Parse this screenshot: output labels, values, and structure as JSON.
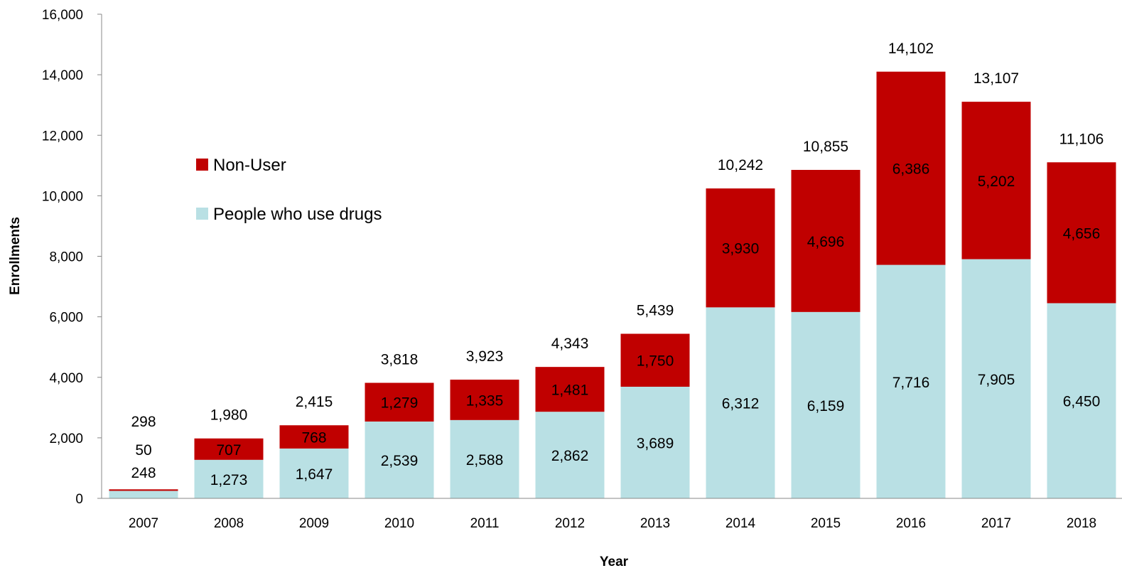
{
  "chart_data": {
    "type": "bar",
    "stacked": true,
    "title": "",
    "xlabel": "Year",
    "ylabel": "Enrollments",
    "ylim": [
      0,
      16000
    ],
    "yticks": [
      0,
      2000,
      4000,
      6000,
      8000,
      10000,
      12000,
      14000,
      16000
    ],
    "ytick_labels": [
      "0",
      "2,000",
      "4,000",
      "6,000",
      "8,000",
      "10,000",
      "12,000",
      "14,000",
      "16,000"
    ],
    "grid": false,
    "legend_position": "upper-left",
    "categories": [
      "2007",
      "2008",
      "2009",
      "2010",
      "2011",
      "2012",
      "2013",
      "2014",
      "2015",
      "2016",
      "2017",
      "2018"
    ],
    "series": [
      {
        "name": "People who use drugs",
        "color": "#b9e0e4",
        "values": [
          248,
          1273,
          1647,
          2539,
          2588,
          2862,
          3689,
          6312,
          6159,
          7716,
          7905,
          6450
        ],
        "labels": [
          "248",
          "1,273",
          "1,647",
          "2,539",
          "2,588",
          "2,862",
          "3,689",
          "6,312",
          "6,159",
          "7,716",
          "7,905",
          "6,450"
        ]
      },
      {
        "name": "Non-User",
        "color": "#c00000",
        "values": [
          50,
          707,
          768,
          1279,
          1335,
          1481,
          1750,
          3930,
          4696,
          6386,
          5202,
          4656
        ],
        "labels": [
          "50",
          "707",
          "768",
          "1,279",
          "1,335",
          "1,481",
          "1,750",
          "3,930",
          "4,696",
          "6,386",
          "5,202",
          "4,656"
        ]
      }
    ],
    "totals": [
      298,
      1980,
      2415,
      3818,
      3923,
      4343,
      5439,
      10242,
      10855,
      14102,
      13107,
      11106
    ],
    "total_labels": [
      "298",
      "1,980",
      "2,415",
      "3,818",
      "3,923",
      "4,343",
      "5,439",
      "10,242",
      "10,855",
      "14,102",
      "13,107",
      "11,106"
    ]
  }
}
